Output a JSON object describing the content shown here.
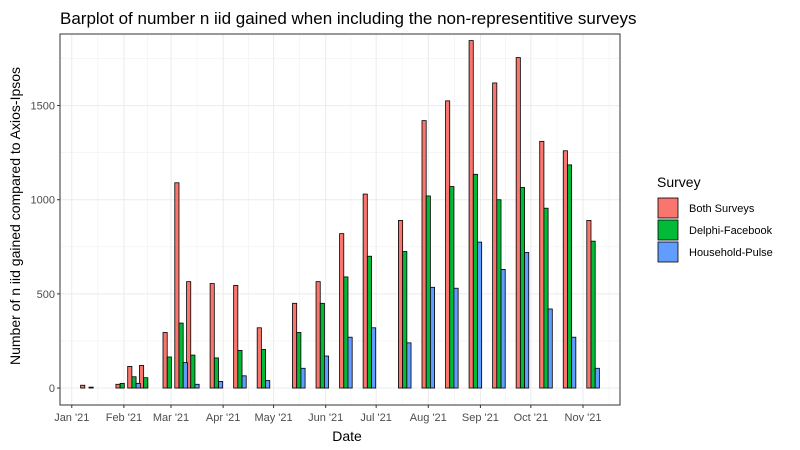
{
  "chart_data": {
    "type": "bar",
    "title": "Barplot of number n iid gained when including the non-representitive surveys",
    "xlabel": "Date",
    "ylabel": "Number of n iid gained compared to Axios-Ipsos",
    "ylim": [
      -90,
      1880
    ],
    "xlim": [
      "2020-12-25",
      "2021-11-23"
    ],
    "x_ticks": [
      {
        "label": "Jan '21",
        "date": "2021-01-01"
      },
      {
        "label": "Feb '21",
        "date": "2021-02-01"
      },
      {
        "label": "Mar '21",
        "date": "2021-03-01"
      },
      {
        "label": "Apr '21",
        "date": "2021-04-01"
      },
      {
        "label": "May '21",
        "date": "2021-05-01"
      },
      {
        "label": "Jun '21",
        "date": "2021-06-01"
      },
      {
        "label": "Jul '21",
        "date": "2021-07-01"
      },
      {
        "label": "Aug '21",
        "date": "2021-08-01"
      },
      {
        "label": "Sep '21",
        "date": "2021-09-01"
      },
      {
        "label": "Oct '21",
        "date": "2021-10-01"
      },
      {
        "label": "Nov '21",
        "date": "2021-11-01"
      }
    ],
    "y_ticks": [
      0,
      500,
      1000,
      1500
    ],
    "grid": true,
    "legend": {
      "title": "Survey",
      "position": "right"
    },
    "series": [
      {
        "name": "Both Surveys",
        "color": "#F8766D",
        "points": [
          {
            "date": "2021-01-10",
            "value": 15
          },
          {
            "date": "2021-01-31",
            "value": 20
          },
          {
            "date": "2021-02-07",
            "value": 115
          },
          {
            "date": "2021-02-14",
            "value": 120
          },
          {
            "date": "2021-02-28",
            "value": 295
          },
          {
            "date": "2021-03-07",
            "value": 1090
          },
          {
            "date": "2021-03-14",
            "value": 565
          },
          {
            "date": "2021-03-28",
            "value": 555
          },
          {
            "date": "2021-04-11",
            "value": 545
          },
          {
            "date": "2021-04-25",
            "value": 320
          },
          {
            "date": "2021-05-16",
            "value": 450
          },
          {
            "date": "2021-05-30",
            "value": 565
          },
          {
            "date": "2021-06-13",
            "value": 820
          },
          {
            "date": "2021-06-27",
            "value": 1030
          },
          {
            "date": "2021-07-18",
            "value": 890
          },
          {
            "date": "2021-08-01",
            "value": 1420
          },
          {
            "date": "2021-08-15",
            "value": 1525
          },
          {
            "date": "2021-08-29",
            "value": 1845
          },
          {
            "date": "2021-09-12",
            "value": 1620
          },
          {
            "date": "2021-09-26",
            "value": 1755
          },
          {
            "date": "2021-10-10",
            "value": 1310
          },
          {
            "date": "2021-10-24",
            "value": 1260
          },
          {
            "date": "2021-11-07",
            "value": 890
          }
        ]
      },
      {
        "name": "Delphi-Facebook",
        "color": "#00BA38",
        "points": [
          {
            "date": "2021-01-31",
            "value": 25
          },
          {
            "date": "2021-02-07",
            "value": 60
          },
          {
            "date": "2021-02-14",
            "value": 55
          },
          {
            "date": "2021-02-28",
            "value": 165
          },
          {
            "date": "2021-03-07",
            "value": 345
          },
          {
            "date": "2021-03-14",
            "value": 175
          },
          {
            "date": "2021-03-28",
            "value": 160
          },
          {
            "date": "2021-04-11",
            "value": 200
          },
          {
            "date": "2021-04-25",
            "value": 205
          },
          {
            "date": "2021-05-16",
            "value": 295
          },
          {
            "date": "2021-05-30",
            "value": 450
          },
          {
            "date": "2021-06-13",
            "value": 590
          },
          {
            "date": "2021-06-27",
            "value": 700
          },
          {
            "date": "2021-07-18",
            "value": 725
          },
          {
            "date": "2021-08-01",
            "value": 1020
          },
          {
            "date": "2021-08-15",
            "value": 1070
          },
          {
            "date": "2021-08-29",
            "value": 1135
          },
          {
            "date": "2021-09-12",
            "value": 1000
          },
          {
            "date": "2021-09-26",
            "value": 1065
          },
          {
            "date": "2021-10-10",
            "value": 955
          },
          {
            "date": "2021-10-24",
            "value": 1185
          },
          {
            "date": "2021-11-07",
            "value": 780
          }
        ]
      },
      {
        "name": "Household-Pulse",
        "color": "#619CFF",
        "points": [
          {
            "date": "2021-01-10",
            "value": 5
          },
          {
            "date": "2021-02-07",
            "value": 25
          },
          {
            "date": "2021-03-07",
            "value": 135
          },
          {
            "date": "2021-03-14",
            "value": 20
          },
          {
            "date": "2021-03-28",
            "value": 35
          },
          {
            "date": "2021-04-11",
            "value": 65
          },
          {
            "date": "2021-04-25",
            "value": 40
          },
          {
            "date": "2021-05-16",
            "value": 105
          },
          {
            "date": "2021-05-30",
            "value": 170
          },
          {
            "date": "2021-06-13",
            "value": 270
          },
          {
            "date": "2021-06-27",
            "value": 320
          },
          {
            "date": "2021-07-18",
            "value": 240
          },
          {
            "date": "2021-08-01",
            "value": 535
          },
          {
            "date": "2021-08-15",
            "value": 530
          },
          {
            "date": "2021-08-29",
            "value": 775
          },
          {
            "date": "2021-09-12",
            "value": 630
          },
          {
            "date": "2021-09-26",
            "value": 720
          },
          {
            "date": "2021-10-10",
            "value": 420
          },
          {
            "date": "2021-10-24",
            "value": 270
          },
          {
            "date": "2021-11-07",
            "value": 105
          }
        ]
      }
    ]
  }
}
